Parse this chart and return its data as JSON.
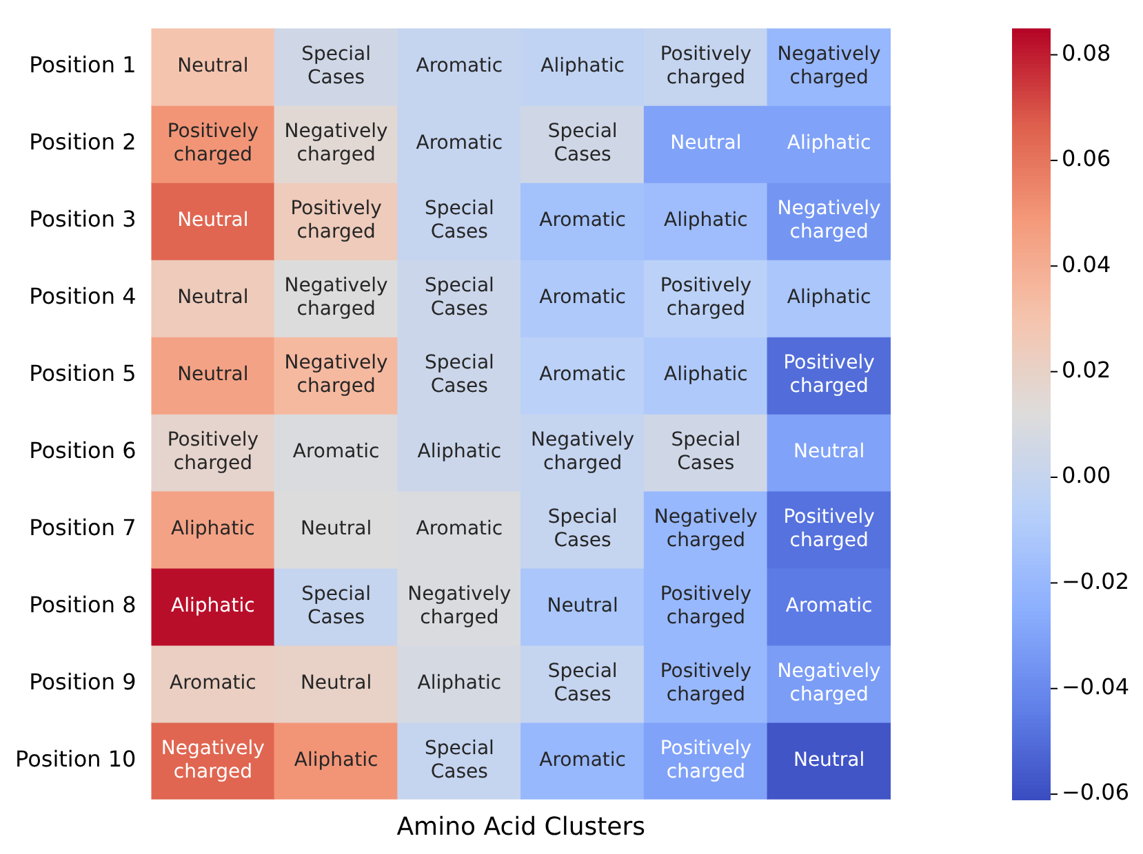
{
  "chart_data": {
    "type": "heatmap",
    "xlabel": "Amino Acid Clusters",
    "categories": [
      null,
      null,
      null,
      null,
      null,
      null
    ],
    "y_categories": [
      "Position 1",
      "Position 2",
      "Position 3",
      "Position 4",
      "Position 5",
      "Position 6",
      "Position 7",
      "Position 8",
      "Position 9",
      "Position 10"
    ],
    "cells": [
      [
        0.03,
        0.005,
        0.0,
        -0.002,
        0.0,
        -0.02
      ],
      [
        0.05,
        0.015,
        0.0,
        0.005,
        -0.03,
        -0.03
      ],
      [
        0.065,
        0.025,
        0.0,
        -0.015,
        -0.017,
        -0.035
      ],
      [
        0.025,
        0.012,
        0.003,
        -0.01,
        -0.005,
        -0.012
      ],
      [
        0.045,
        0.035,
        0.003,
        -0.005,
        -0.01,
        -0.05
      ],
      [
        0.018,
        0.01,
        0.003,
        0.0,
        0.005,
        -0.03
      ],
      [
        0.045,
        0.012,
        0.01,
        0.0,
        -0.02,
        -0.048
      ],
      [
        0.083,
        0.0,
        0.01,
        -0.012,
        -0.02,
        -0.045
      ],
      [
        0.022,
        0.02,
        0.008,
        0.0,
        -0.02,
        -0.032
      ],
      [
        0.065,
        0.05,
        0.0,
        -0.02,
        -0.03,
        -0.058
      ]
    ],
    "cell_labels": [
      [
        "Neutral",
        "Special Cases",
        "Aromatic",
        "Aliphatic",
        "Positively charged",
        "Negatively charged"
      ],
      [
        "Positively charged",
        "Negatively charged",
        "Aromatic",
        "Special Cases",
        "Neutral",
        "Aliphatic"
      ],
      [
        "Neutral",
        "Positively charged",
        "Special Cases",
        "Aromatic",
        "Aliphatic",
        "Negatively charged"
      ],
      [
        "Neutral",
        "Negatively charged",
        "Special Cases",
        "Aromatic",
        "Positively charged",
        "Aliphatic"
      ],
      [
        "Neutral",
        "Negatively charged",
        "Special Cases",
        "Aromatic",
        "Aliphatic",
        "Positively charged"
      ],
      [
        "Positively charged",
        "Aromatic",
        "Aliphatic",
        "Negatively charged",
        "Special Cases",
        "Neutral"
      ],
      [
        "Aliphatic",
        "Neutral",
        "Aromatic",
        "Special Cases",
        "Negatively charged",
        "Positively charged"
      ],
      [
        "Aliphatic",
        "Special Cases",
        "Negatively charged",
        "Neutral",
        "Positively charged",
        "Aromatic"
      ],
      [
        "Aromatic",
        "Neutral",
        "Aliphatic",
        "Special Cases",
        "Positively charged",
        "Negatively charged"
      ],
      [
        "Negatively charged",
        "Aliphatic",
        "Special Cases",
        "Aromatic",
        "Positively charged",
        "Neutral"
      ]
    ],
    "clim": [
      -0.061,
      0.085
    ],
    "cticks": [
      {
        "value": -0.06,
        "label": "−0.06"
      },
      {
        "value": -0.04,
        "label": "−0.04"
      },
      {
        "value": -0.02,
        "label": "−0.02"
      },
      {
        "value": 0,
        "label": "0.00"
      },
      0.02,
      0.04,
      0.06,
      0.08
    ]
  }
}
